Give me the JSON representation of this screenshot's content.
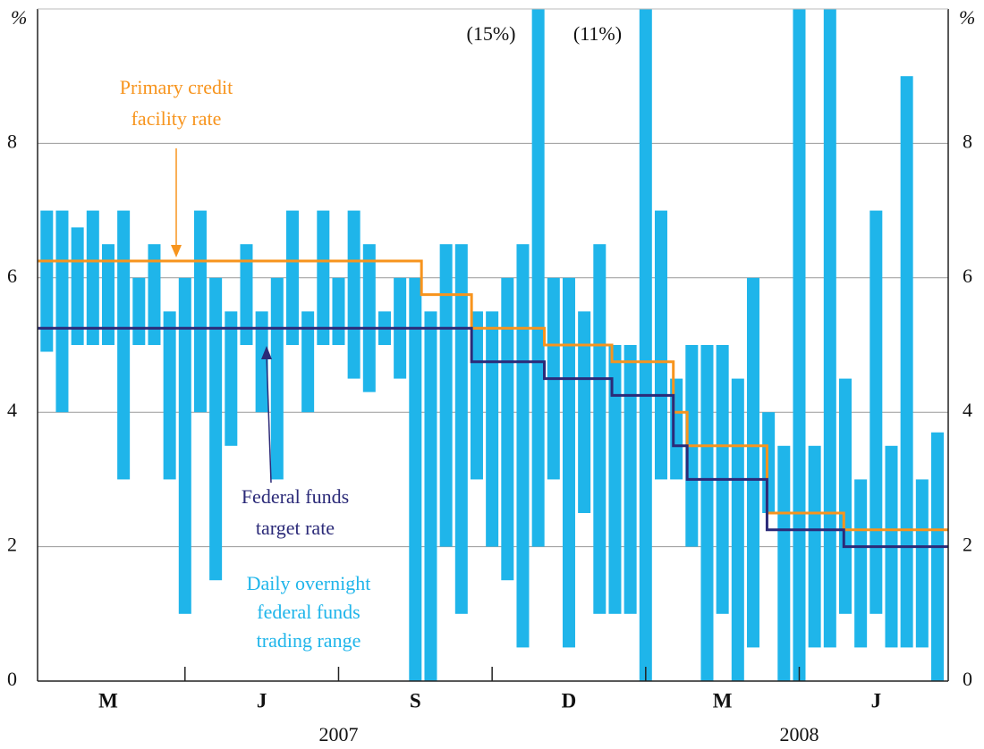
{
  "chart_data": {
    "type": "line",
    "y_unit": "%",
    "categories": [
      "M",
      "J",
      "S",
      "D",
      "M",
      "J"
    ],
    "groups": [
      "2007",
      "2008"
    ],
    "xlim": [
      0.04,
      5.97
    ],
    "ylim": [
      0,
      10
    ],
    "yticks": [
      0,
      2,
      4,
      6,
      8
    ],
    "grid": true,
    "range": {
      "name": "Daily overnight federal funds trading range",
      "color": "#1fb5ea",
      "x": [
        0.1,
        0.2,
        0.3,
        0.4,
        0.5,
        0.6,
        0.7,
        0.8,
        0.9,
        1.0,
        1.1,
        1.2,
        1.3,
        1.4,
        1.5,
        1.6,
        1.7,
        1.8,
        1.9,
        2.0,
        2.1,
        2.2,
        2.3,
        2.4,
        2.5,
        2.6,
        2.7,
        2.8,
        2.9,
        3.0,
        3.1,
        3.2,
        3.3,
        3.4,
        3.5,
        3.6,
        3.7,
        3.8,
        3.9,
        4.0,
        4.1,
        4.2,
        4.3,
        4.4,
        4.5,
        4.6,
        4.7,
        4.8,
        4.9,
        5.0,
        5.1,
        5.2,
        5.3,
        5.4,
        5.5,
        5.6,
        5.7,
        5.8,
        5.9
      ],
      "low": [
        4.9,
        4.0,
        5.0,
        5.0,
        5.0,
        3.0,
        5.0,
        5.0,
        3.0,
        1.0,
        4.0,
        1.5,
        3.5,
        5.0,
        4.0,
        3.0,
        5.0,
        4.0,
        5.0,
        5.0,
        4.5,
        4.3,
        5.0,
        4.5,
        0,
        0,
        2.0,
        1.0,
        3.0,
        2.0,
        1.5,
        0.5,
        2.0,
        3.0,
        0.5,
        2.5,
        1.0,
        1.0,
        1.0,
        0,
        3.0,
        3.0,
        2.0,
        0,
        1.0,
        0,
        0.5,
        2.5,
        0,
        0,
        0.5,
        0.5,
        1.0,
        0.5,
        1.0,
        0.5,
        0.5,
        0.5,
        0
      ],
      "high": [
        7,
        7,
        6.75,
        7,
        6.5,
        7,
        6.0,
        6.5,
        5.5,
        6.0,
        7,
        6.0,
        5.5,
        6.5,
        5.5,
        6.0,
        7,
        5.5,
        7,
        6.0,
        7,
        6.5,
        5.5,
        6.0,
        6.0,
        5.5,
        6.5,
        6.5,
        5.5,
        5.5,
        6.0,
        6.5,
        15,
        6.0,
        6.0,
        5.5,
        6.5,
        5.0,
        5.0,
        11,
        7,
        4.5,
        5.0,
        5.0,
        5.0,
        4.5,
        6.0,
        4.0,
        3.5,
        10,
        3.5,
        10,
        4.5,
        3.0,
        7,
        3.5,
        9,
        3.0,
        3.7
      ]
    },
    "series": [
      {
        "name": "Primary credit facility rate",
        "color": "#f7941d",
        "x": [
          0.04,
          2.54,
          2.54,
          2.866,
          2.866,
          3.34,
          3.34,
          3.78,
          3.78,
          4.18,
          4.18,
          4.27,
          4.27,
          4.79,
          4.79,
          5.29,
          5.29,
          5.97
        ],
        "values": [
          6.25,
          6.25,
          5.75,
          5.75,
          5.25,
          5.25,
          5.0,
          5.0,
          4.75,
          4.75,
          4.0,
          4.0,
          3.5,
          3.5,
          2.5,
          2.5,
          2.25,
          2.25
        ]
      },
      {
        "name": "Federal funds target rate",
        "color": "#2b2a78",
        "x": [
          0.04,
          2.866,
          2.866,
          3.34,
          3.34,
          3.78,
          3.78,
          4.18,
          4.18,
          4.27,
          4.27,
          4.79,
          4.79,
          5.29,
          5.29,
          5.97
        ],
        "values": [
          5.25,
          5.25,
          4.75,
          4.75,
          4.5,
          4.5,
          4.25,
          4.25,
          3.5,
          3.5,
          3.0,
          3.0,
          2.25,
          2.25,
          2.0,
          2.0
        ]
      }
    ],
    "annotations": [
      {
        "lines": [
          "Primary credit",
          "facility rate"
        ],
        "color": "#f7941d"
      },
      {
        "lines": [
          "Federal funds",
          "target rate"
        ],
        "color": "#2b2a78"
      },
      {
        "lines": [
          "Daily overnight",
          "federal funds",
          "trading range"
        ],
        "color": "#1fb5ea"
      },
      {
        "lines": [
          "(15%)"
        ],
        "color": "#111111"
      },
      {
        "lines": [
          "(11%)"
        ],
        "color": "#111111"
      }
    ]
  }
}
